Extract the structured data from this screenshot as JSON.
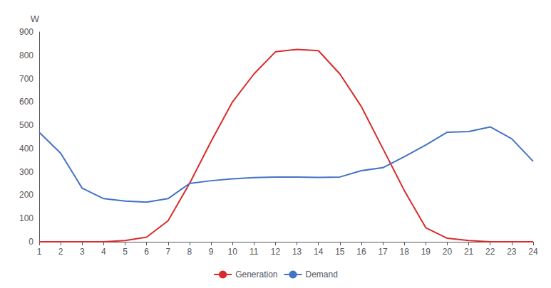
{
  "chart_data": {
    "type": "line",
    "ylabel": "W",
    "x": [
      1,
      2,
      3,
      4,
      5,
      6,
      7,
      8,
      9,
      10,
      11,
      12,
      13,
      14,
      15,
      16,
      17,
      18,
      19,
      20,
      21,
      22,
      23,
      24
    ],
    "series": [
      {
        "name": "Generation",
        "color": "#d92b2b",
        "values": [
          0,
          0,
          0,
          0,
          5,
          20,
          90,
          250,
          430,
          600,
          720,
          815,
          825,
          820,
          720,
          580,
          400,
          220,
          60,
          15,
          5,
          0,
          0,
          0
        ]
      },
      {
        "name": "Demand",
        "color": "#4472c4",
        "values": [
          470,
          380,
          230,
          185,
          175,
          170,
          185,
          250,
          262,
          270,
          275,
          278,
          278,
          276,
          278,
          305,
          318,
          365,
          415,
          470,
          473,
          493,
          442,
          345
        ]
      }
    ],
    "xlim": [
      1,
      24
    ],
    "xticks": [
      1,
      2,
      3,
      4,
      5,
      6,
      7,
      8,
      9,
      10,
      11,
      12,
      13,
      14,
      15,
      16,
      17,
      18,
      19,
      20,
      21,
      22,
      23,
      24
    ],
    "ylim": [
      0,
      900
    ],
    "yticks": [
      0,
      100,
      200,
      300,
      400,
      500,
      600,
      700,
      800,
      900
    ],
    "grid": false,
    "legend": "bottom"
  }
}
